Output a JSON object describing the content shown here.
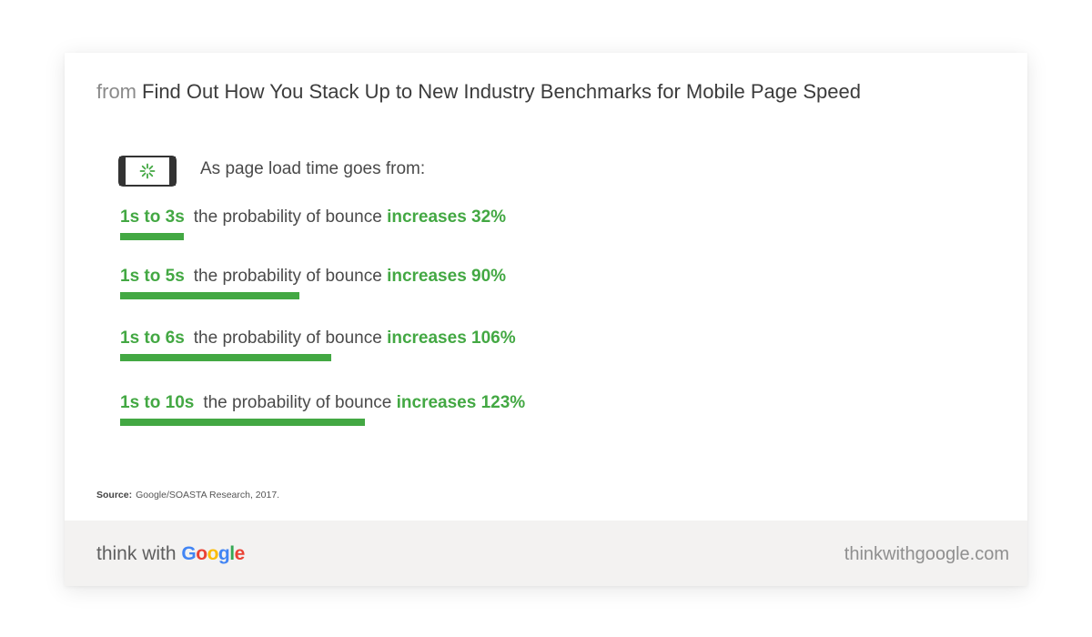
{
  "header": {
    "prefix": "from",
    "title": "Find Out How You Stack Up to New Industry Benchmarks for Mobile Page Speed"
  },
  "intro_text": "As page load time goes from:",
  "icon": "mobile-phone-loading-icon",
  "colors": {
    "accent": "#43a843",
    "text": "#4a4a4a",
    "footer_bg": "#f3f2f1"
  },
  "chart_data": {
    "type": "bar",
    "categories": [
      "1s to 3s",
      "1s to 5s",
      "1s to 6s",
      "1s to 10s"
    ],
    "values": [
      32,
      90,
      106,
      123
    ],
    "unit": "%",
    "row_text": "the probability of bounce",
    "increase_labels": [
      "increases 32%",
      "increases 90%",
      "increases 106%",
      "increases 123%"
    ]
  },
  "source": {
    "label": "Source:",
    "text": "Google/SOASTA Research, 2017."
  },
  "footer": {
    "brand_prefix": "think with",
    "brand_name": "Google",
    "brand_letter_colors": [
      "#4285f4",
      "#ea4335",
      "#fbbc05",
      "#4285f4",
      "#34a853",
      "#ea4335"
    ],
    "domain": "thinkwithgoogle.com"
  }
}
